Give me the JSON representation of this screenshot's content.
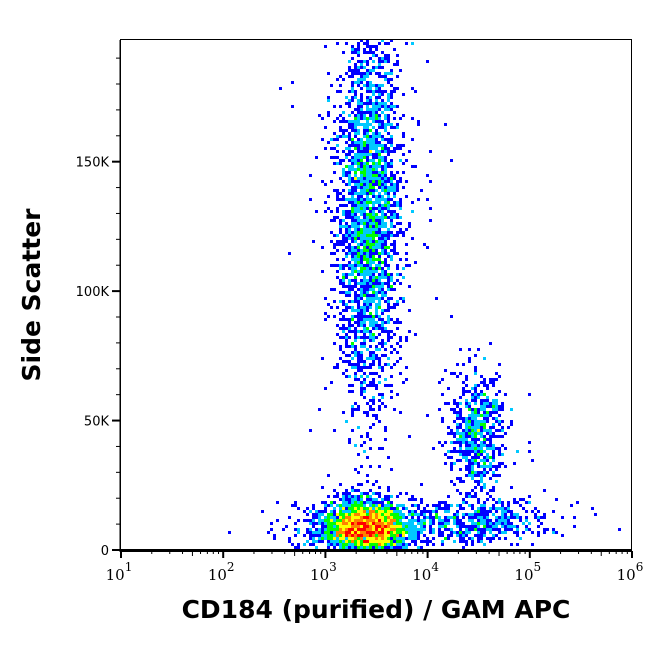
{
  "chart_data": {
    "type": "heatmap",
    "subtype": "flow-cytometry-density-dot-plot",
    "xlabel": "CD184 (purified) / GAM APC",
    "ylabel": "Side Scatter",
    "x_scale": "log",
    "xlim": [
      10,
      1000000
    ],
    "x_ticks": [
      {
        "value": 10,
        "base": "10",
        "exp": "1"
      },
      {
        "value": 100,
        "base": "10",
        "exp": "2"
      },
      {
        "value": 1000,
        "base": "10",
        "exp": "3"
      },
      {
        "value": 10000,
        "base": "10",
        "exp": "4"
      },
      {
        "value": 100000,
        "base": "10",
        "exp": "5"
      },
      {
        "value": 1000000,
        "base": "10",
        "exp": "6"
      }
    ],
    "y_scale": "linear",
    "ylim": [
      0,
      197000
    ],
    "y_ticks": [
      {
        "value": 0,
        "label": "0"
      },
      {
        "value": 50000,
        "label": "50K"
      },
      {
        "value": 100000,
        "label": "100K"
      },
      {
        "value": 150000,
        "label": "150K"
      }
    ],
    "grid": false,
    "density_colors": [
      "#0000ff",
      "#00c8ff",
      "#00ff00",
      "#ffff00",
      "#ff8000",
      "#ff0000"
    ],
    "populations": [
      {
        "x_center": 2500,
        "x_log_sd": 0.22,
        "y_center": 9000,
        "y_sd": 5000,
        "events": 3200
      },
      {
        "x_center": 2700,
        "x_log_sd": 0.15,
        "y_center": 130000,
        "y_sd": 38000,
        "events": 3000
      },
      {
        "x_center": 30000,
        "x_log_sd": 0.13,
        "y_center": 45000,
        "y_sd": 12000,
        "events": 700
      },
      {
        "x_center": 30000,
        "x_log_sd": 0.35,
        "y_center": 11000,
        "y_sd": 4500,
        "events": 500
      }
    ]
  }
}
